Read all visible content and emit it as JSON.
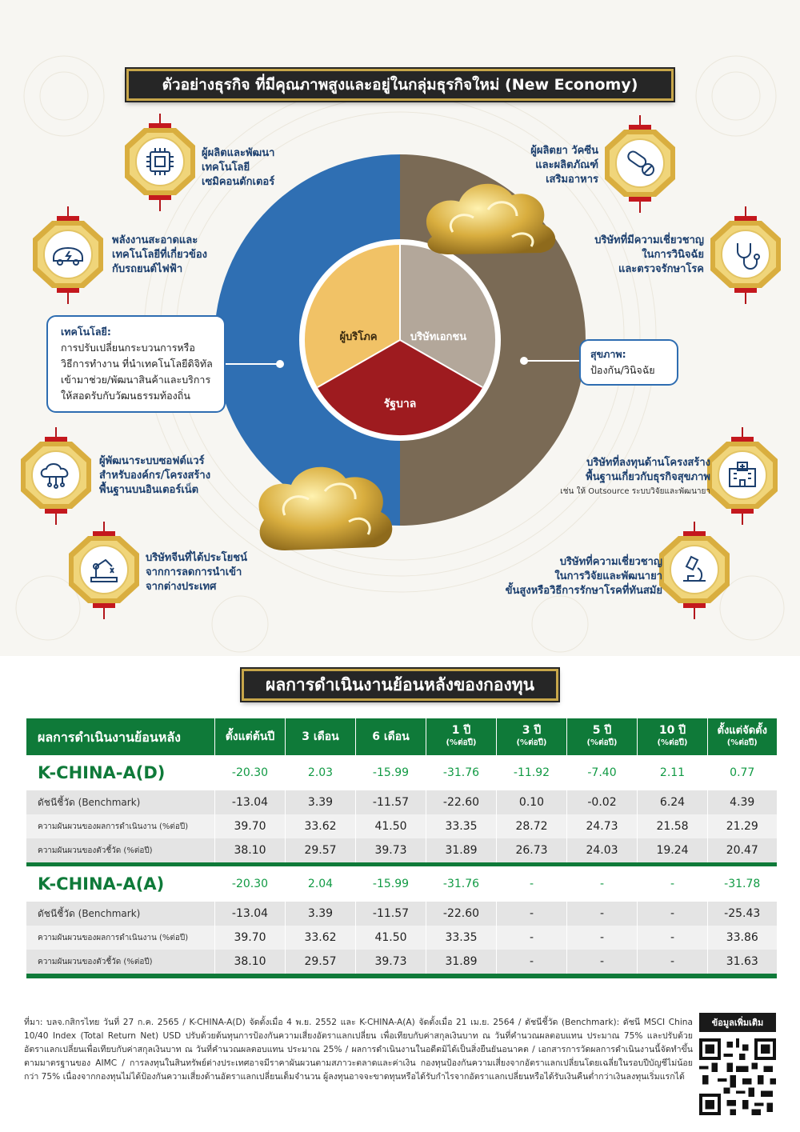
{
  "section1": {
    "title": "ตัวอย่างธุรกิจ ที่มีคุณภาพสูงและอยู่ในกลุ่มธุรกิจใหม่ (New Economy)"
  },
  "pie": {
    "inner": {
      "consumer": "ผู้บริโภค",
      "private": "บริษัทเอกชน",
      "government": "รัฐบาล"
    },
    "colors": {
      "technology": "#2f6fb3",
      "health": "#7a6a55",
      "consumer": "#f1c266",
      "private": "#b3a79a",
      "government": "#9e1b1f"
    }
  },
  "callouts": {
    "technology": {
      "title": "เทคโนโลยี:",
      "lines": [
        "การปรับเปลี่ยนกระบวนการหรือ",
        "วิธีการทำงาน ที่นำเทคโนโลยีดิจิทัล",
        "เข้ามาช่วย/พัฒนาสินค้าและบริการ",
        "ให้สอดรับกับวัฒนธรรมท้องถิ่น"
      ]
    },
    "health": {
      "title": "สุขภาพ:",
      "lines": [
        "ป้องกัน/วินิจฉัย"
      ]
    }
  },
  "features_left": [
    {
      "lines": [
        "ผู้ผลิตและพัฒนา",
        "เทคโนโลยี",
        "เซมิคอนดักเตอร์"
      ],
      "icon": "chip-icon"
    },
    {
      "lines": [
        "พลังงานสะอาดและ",
        "เทคโนโลยีที่เกี่ยวข้อง",
        "กับรถยนต์ไฟฟ้า"
      ],
      "icon": "electric-car-icon"
    },
    {
      "lines": [
        "ผู้พัฒนาระบบซอฟต์แวร์",
        "สำหรับองค์กร/โครงสร้าง",
        "พื้นฐานบนอินเตอร์เน็ต"
      ],
      "icon": "cloud-network-icon"
    },
    {
      "lines": [
        "บริษัทจีนที่ได้ประโยชน์",
        "จากการลดการนำเข้า",
        "จากต่างประเทศ"
      ],
      "icon": "robot-arm-icon"
    }
  ],
  "features_right": [
    {
      "lines": [
        "ผู้ผลิตยา วัคซีน",
        "และผลิตภัณฑ์",
        "เสริมอาหาร"
      ],
      "icon": "pill-icon"
    },
    {
      "lines": [
        "บริษัทที่มีความเชี่ยวชาญ",
        "ในการวินิจฉัย",
        "และตรวจรักษาโรค"
      ],
      "icon": "stethoscope-icon"
    },
    {
      "lines": [
        "บริษัทที่ลงทุนด้านโครงสร้าง",
        "พื้นฐานเกี่ยวกับธุรกิจสุขภาพ"
      ],
      "note": "เช่น ให้ Outsource ระบบวิจัยและพัฒนายา",
      "icon": "hospital-icon"
    },
    {
      "lines": [
        "บริษัทที่ความเชี่ยวชาญ",
        "ในการวิจัยและพัฒนายา",
        "ขั้นสูงหรือวิธีการรักษาโรคที่ทันสมัย"
      ],
      "icon": "microscope-icon"
    }
  ],
  "section2": {
    "title": "ผลการดำเนินงานย้อนหลังของกองทุน"
  },
  "table": {
    "headers": [
      {
        "main": "ผลการดำเนินงานย้อนหลัง",
        "sub": ""
      },
      {
        "main": "ตั้งแต่ต้นปี",
        "sub": ""
      },
      {
        "main": "3 เดือน",
        "sub": ""
      },
      {
        "main": "6 เดือน",
        "sub": ""
      },
      {
        "main": "1 ปี",
        "sub": "(%ต่อปี)"
      },
      {
        "main": "3 ปี",
        "sub": "(%ต่อปี)"
      },
      {
        "main": "5 ปี",
        "sub": "(%ต่อปี)"
      },
      {
        "main": "10 ปี",
        "sub": "(%ต่อปี)"
      },
      {
        "main": "ตั้งแต่จัดตั้ง",
        "sub": "(%ต่อปี)"
      }
    ],
    "groups": [
      {
        "fund": "K-CHINA-A(D)",
        "fund_values": [
          "-20.30",
          "2.03",
          "-15.99",
          "-31.76",
          "-11.92",
          "-7.40",
          "2.11",
          "0.77"
        ],
        "rows": [
          {
            "label": "ดัชนีชี้วัด (Benchmark)",
            "values": [
              "-13.04",
              "3.39",
              "-11.57",
              "-22.60",
              "0.10",
              "-0.02",
              "6.24",
              "4.39"
            ]
          },
          {
            "label": "ความผันผวนของผลการดำเนินงาน (%ต่อปี)",
            "values": [
              "39.70",
              "33.62",
              "41.50",
              "33.35",
              "28.72",
              "24.73",
              "21.58",
              "21.29"
            ]
          },
          {
            "label": "ความผันผวนของตัวชี้วัด (%ต่อปี)",
            "values": [
              "38.10",
              "29.57",
              "39.73",
              "31.89",
              "26.73",
              "24.03",
              "19.24",
              "20.47"
            ]
          }
        ]
      },
      {
        "fund": "K-CHINA-A(A)",
        "fund_values": [
          "-20.30",
          "2.04",
          "-15.99",
          "-31.76",
          "-",
          "-",
          "-",
          "-31.78"
        ],
        "rows": [
          {
            "label": "ดัชนีชี้วัด (Benchmark)",
            "values": [
              "-13.04",
              "3.39",
              "-11.57",
              "-22.60",
              "-",
              "-",
              "-",
              "-25.43"
            ]
          },
          {
            "label": "ความผันผวนของผลการดำเนินงาน (%ต่อปี)",
            "values": [
              "39.70",
              "33.62",
              "41.50",
              "33.35",
              "-",
              "-",
              "-",
              "33.86"
            ]
          },
          {
            "label": "ความผันผวนของตัวชี้วัด (%ต่อปี)",
            "values": [
              "38.10",
              "29.57",
              "39.73",
              "31.89",
              "-",
              "-",
              "-",
              "31.63"
            ]
          }
        ]
      }
    ]
  },
  "footnote": "ที่มา: บลจ.กสิกรไทย วันที่ 27 ก.ค. 2565 / K-CHINA-A(D) จัดตั้งเมื่อ 4 พ.ย. 2552 และ K-CHINA-A(A) จัดตั้งเมื่อ 21 เม.ย. 2564 / ดัชนีชี้วัด (Benchmark): ดัชนี MSCI China 10/40 Index (Total Return Net) USD ปรับด้วยต้นทุนการป้องกันความเสี่ยงอัตราแลกเปลี่ยน เพื่อเทียบกับค่าสกุลเงินบาท ณ วันที่คำนวณผลตอบแทน ประมาณ 75% และปรับด้วยอัตราแลกเปลี่ยนเพื่อเทียบกับค่าสกุลเงินบาท ณ วันที่คำนวณผลตอบแทน ประมาณ 25% / ผลการดำเนินงานในอดีตมิได้เป็นสิ่งยืนยันอนาคต / เอกสารการวัดผลการดำเนินงานนี้จัดทำขึ้นตามมาตรฐานของ AIMC / การลงทุนในสินทรัพย์ต่างประเทศอาจมีราคาผันผวนตามสภาวะตลาดและค่าเงิน กองทุนป้องกันความเสี่ยงจากอัตราแลกเปลี่ยนโดยเฉลี่ยในรอบปีบัญชีไม่น้อยกว่า 75% เนื่องจากกองทุนไม่ได้ป้องกันความเสี่ยงด้านอัตราแลกเปลี่ยนเต็มจำนวน ผู้ลงทุนอาจจะขาดทุนหรือได้รับกำไรจากอัตราแลกเปลี่ยนหรือได้รับเงินคืนต่ำกว่าเงินลงทุนเริ่มแรกได้",
  "qr": {
    "label": "ข้อมูลเพิ่มเติม",
    "icon": "qr-code-icon"
  }
}
